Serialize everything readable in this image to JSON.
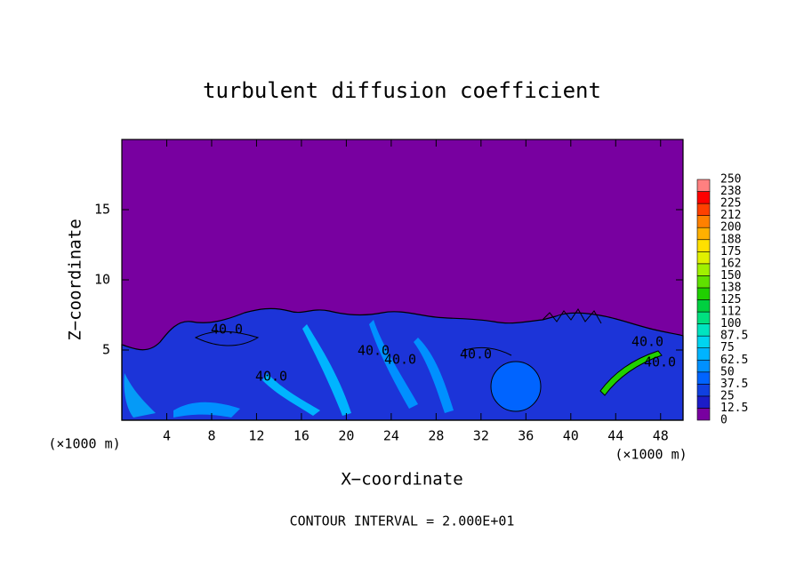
{
  "chart_data": {
    "type": "contour",
    "title": "turbulent diffusion coefficient",
    "x_label": "X−coordinate",
    "y_label": "Z−coordinate",
    "x_unit_left": "(×1000 m)",
    "x_unit_right": "(×1000 m)",
    "footer": "CONTOUR INTERVAL = 2.000E+01",
    "xlim": [
      0,
      50
    ],
    "ylim": [
      0,
      20
    ],
    "xticks": [
      4,
      8,
      12,
      16,
      20,
      24,
      28,
      32,
      36,
      40,
      44,
      48
    ],
    "yticks": [
      5,
      10,
      15
    ],
    "contour_labels": [
      "40.0",
      "40.0",
      "40.0",
      "40.0",
      "40.0",
      "40.0",
      "40.0"
    ],
    "colorbar": {
      "levels": [
        0,
        12.5,
        25,
        37.5,
        50,
        62.5,
        75,
        87.5,
        100,
        {
          "value": 112.5,
          "label": "112"
        },
        125,
        {
          "value": 137.5,
          "label": "138"
        },
        150,
        {
          "value": 162.5,
          "label": "162"
        },
        175,
        {
          "value": 187.5,
          "label": "188"
        },
        200,
        {
          "value": 212.5,
          "label": "212"
        },
        225,
        {
          "value": 237.5,
          "label": "238"
        },
        250
      ],
      "colors": [
        "#7800a0",
        "#1c1cc8",
        "#1040e0",
        "#0064ff",
        "#0090ff",
        "#00b4ff",
        "#00d4f0",
        "#00e4c0",
        "#00e080",
        "#00d040",
        "#20d000",
        "#60e000",
        "#a0f000",
        "#e0f000",
        "#ffe000",
        "#ffb000",
        "#ff8000",
        "#ff4000",
        "#ff0000",
        "#ff8080"
      ]
    }
  }
}
